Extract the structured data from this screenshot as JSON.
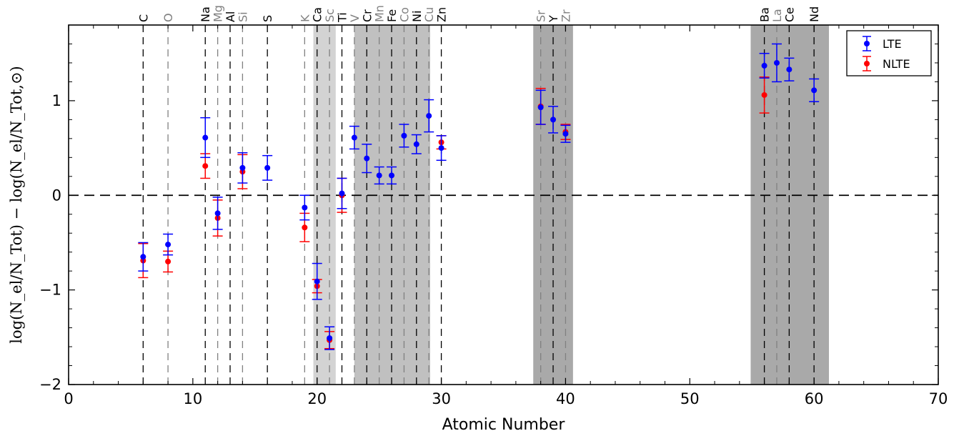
{
  "chart_data": {
    "type": "scatter",
    "xlabel": "Atomic Number",
    "ylabel": "log(N_el/N_Tot) − log(N_el/N_Tot,⊙)",
    "xlim": [
      0,
      70
    ],
    "ylim": [
      -2,
      1.8
    ],
    "x_ticks": [
      0,
      10,
      20,
      30,
      40,
      50,
      60,
      70
    ],
    "y_ticks": [
      -2,
      -1,
      0,
      1
    ],
    "y_tick_labels": [
      "−2",
      "−1",
      "0",
      "1"
    ],
    "reference_line_y": 0,
    "shaded_bands": [
      {
        "from": 19.7,
        "to": 21.5,
        "color": "#d3d3d3"
      },
      {
        "from": 23.0,
        "to": 29.1,
        "color": "#c0c0c0"
      },
      {
        "from": 37.4,
        "to": 40.6,
        "color": "#a9a9a9"
      },
      {
        "from": 54.9,
        "to": 61.2,
        "color": "#a9a9a9"
      }
    ],
    "elements": [
      {
        "symbol": "C",
        "z": 6,
        "color": "#000000"
      },
      {
        "symbol": "O",
        "z": 8,
        "color": "#808080"
      },
      {
        "symbol": "Na",
        "z": 11,
        "color": "#000000"
      },
      {
        "symbol": "Mg",
        "z": 12,
        "color": "#808080"
      },
      {
        "symbol": "Al",
        "z": 13,
        "color": "#000000"
      },
      {
        "symbol": "Si",
        "z": 14,
        "color": "#808080"
      },
      {
        "symbol": "S",
        "z": 16,
        "color": "#000000"
      },
      {
        "symbol": "K",
        "z": 19,
        "color": "#808080"
      },
      {
        "symbol": "Ca",
        "z": 20,
        "color": "#000000"
      },
      {
        "symbol": "Sc",
        "z": 21,
        "color": "#808080"
      },
      {
        "symbol": "Ti",
        "z": 22,
        "color": "#000000"
      },
      {
        "symbol": "V",
        "z": 23,
        "color": "#808080"
      },
      {
        "symbol": "Cr",
        "z": 24,
        "color": "#000000"
      },
      {
        "symbol": "Mn",
        "z": 25,
        "color": "#808080"
      },
      {
        "symbol": "Fe",
        "z": 26,
        "color": "#000000"
      },
      {
        "symbol": "Co",
        "z": 27,
        "color": "#808080"
      },
      {
        "symbol": "Ni",
        "z": 28,
        "color": "#000000"
      },
      {
        "symbol": "Cu",
        "z": 29,
        "color": "#808080"
      },
      {
        "symbol": "Zn",
        "z": 30,
        "color": "#000000"
      },
      {
        "symbol": "Sr",
        "z": 38,
        "color": "#808080"
      },
      {
        "symbol": "Y",
        "z": 39,
        "color": "#000000"
      },
      {
        "symbol": "Zr",
        "z": 40,
        "color": "#808080"
      },
      {
        "symbol": "Ba",
        "z": 56,
        "color": "#000000"
      },
      {
        "symbol": "La",
        "z": 57,
        "color": "#808080"
      },
      {
        "symbol": "Ce",
        "z": 58,
        "color": "#000000"
      },
      {
        "symbol": "Nd",
        "z": 60,
        "color": "#000000"
      }
    ],
    "series": [
      {
        "name": "LTE",
        "color": "#0000ff",
        "points": [
          {
            "x": 6,
            "y": -0.65,
            "err": 0.15
          },
          {
            "x": 8,
            "y": -0.52,
            "err": 0.11
          },
          {
            "x": 11,
            "y": 0.61,
            "err": 0.21
          },
          {
            "x": 12,
            "y": -0.19,
            "err": 0.17
          },
          {
            "x": 14,
            "y": 0.29,
            "err": 0.16
          },
          {
            "x": 16,
            "y": 0.29,
            "err": 0.13
          },
          {
            "x": 19,
            "y": -0.13,
            "err": 0.13
          },
          {
            "x": 20,
            "y": -0.91,
            "err": 0.19
          },
          {
            "x": 21,
            "y": -1.51,
            "err": 0.12
          },
          {
            "x": 22,
            "y": 0.02,
            "err": 0.16
          },
          {
            "x": 23,
            "y": 0.61,
            "err": 0.12
          },
          {
            "x": 24,
            "y": 0.39,
            "err": 0.15
          },
          {
            "x": 25,
            "y": 0.21,
            "err": 0.09
          },
          {
            "x": 26,
            "y": 0.21,
            "err": 0.09
          },
          {
            "x": 27,
            "y": 0.63,
            "err": 0.12
          },
          {
            "x": 28,
            "y": 0.54,
            "err": 0.1
          },
          {
            "x": 29,
            "y": 0.84,
            "err": 0.17
          },
          {
            "x": 30,
            "y": 0.5,
            "err": 0.13
          },
          {
            "x": 38,
            "y": 0.93,
            "err": 0.18
          },
          {
            "x": 39,
            "y": 0.8,
            "err": 0.14
          },
          {
            "x": 40,
            "y": 0.65,
            "err": 0.09
          },
          {
            "x": 56,
            "y": 1.37,
            "err": 0.13
          },
          {
            "x": 57,
            "y": 1.4,
            "err": 0.2
          },
          {
            "x": 58,
            "y": 1.33,
            "err": 0.12
          },
          {
            "x": 60,
            "y": 1.11,
            "err": 0.12
          }
        ]
      },
      {
        "name": "NLTE",
        "color": "#ff0000",
        "points": [
          {
            "x": 6,
            "y": -0.69,
            "err": 0.18
          },
          {
            "x": 8,
            "y": -0.7,
            "err": 0.11
          },
          {
            "x": 11,
            "y": 0.31,
            "err": 0.13
          },
          {
            "x": 12,
            "y": -0.24,
            "err": 0.19
          },
          {
            "x": 14,
            "y": 0.25,
            "err": 0.18
          },
          {
            "x": 19,
            "y": -0.34,
            "err": 0.15
          },
          {
            "x": 20,
            "y": -0.96,
            "err": 0.07
          },
          {
            "x": 21,
            "y": -1.53,
            "err": 0.09
          },
          {
            "x": 22,
            "y": 0.0,
            "err": 0.18
          },
          {
            "x": 30,
            "y": 0.56,
            "err": 0.07
          },
          {
            "x": 38,
            "y": 0.94,
            "err": 0.19
          },
          {
            "x": 40,
            "y": 0.67,
            "err": 0.08
          },
          {
            "x": 56,
            "y": 1.06,
            "err": 0.19
          }
        ]
      }
    ],
    "legend": {
      "placement": "top-right",
      "entries": [
        "LTE",
        "NLTE"
      ]
    }
  }
}
